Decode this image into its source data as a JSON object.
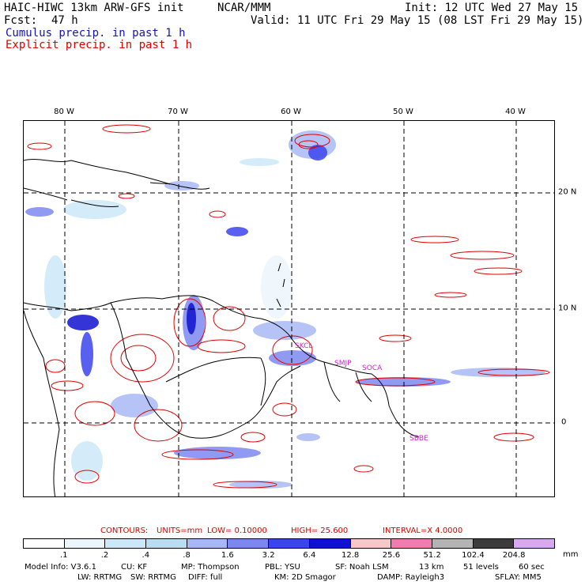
{
  "header": {
    "title": "HAIC-HIWC 13km ARW-GFS init",
    "org": "NCAR/MMM",
    "init": "Init: 12 UTC Wed 27 May 15",
    "fcst_label": "Fcst:",
    "fcst_value": "47 h",
    "valid": "Valid: 11 UTC Fri 29 May 15 (08 LST Fri 29 May 15)",
    "cumulus_label": "Cumulus precip. in past 1 h",
    "explicit_label": "Explicit precip. in past 1 h"
  },
  "axes": {
    "lon_labels": [
      "80 W",
      "70 W",
      "60 W",
      "50 W",
      "40 W"
    ],
    "lat_labels": [
      "20 N",
      "10 N",
      "0"
    ]
  },
  "stations": [
    "SKCL",
    "SMJP",
    "SOCA",
    "SBBE"
  ],
  "contours": {
    "label": "CONTOURS:",
    "units": "UNITS=mm",
    "low": "LOW= 0.10000",
    "high": "HIGH= 25.600",
    "interval": "INTERVAL=X 4.0000"
  },
  "colorbar": {
    "labels": [
      ".1",
      ".2",
      ".4",
      ".8",
      "1.6",
      "3.2",
      "6.4",
      "12.8",
      "25.6",
      "51.2",
      "102.4",
      "204.8"
    ],
    "unit": "mm",
    "colors": [
      "#ffffff",
      "#ecf4fc",
      "#cce8f8",
      "#b8dcf0",
      "#a8b8f4",
      "#7c88f0",
      "#3c44ec",
      "#1010d0",
      "#f8c8c8",
      "#f07cb0",
      "#b4b4b4",
      "#3c3c3c",
      "#d8a8f0"
    ]
  },
  "model_info": {
    "line1": [
      "Model Info: V3.6.1",
      "CU: KF",
      "MP: Thompson",
      "PBL: YSU",
      "SF: Noah LSM",
      "13 km",
      "51 levels",
      "60 sec"
    ],
    "line2": [
      "LW: RRTMG",
      "SW: RRTMG",
      "DIFF: full",
      "KM: 2D Smagor",
      "DAMP: Rayleigh3",
      "SFLAY: MM5"
    ]
  }
}
